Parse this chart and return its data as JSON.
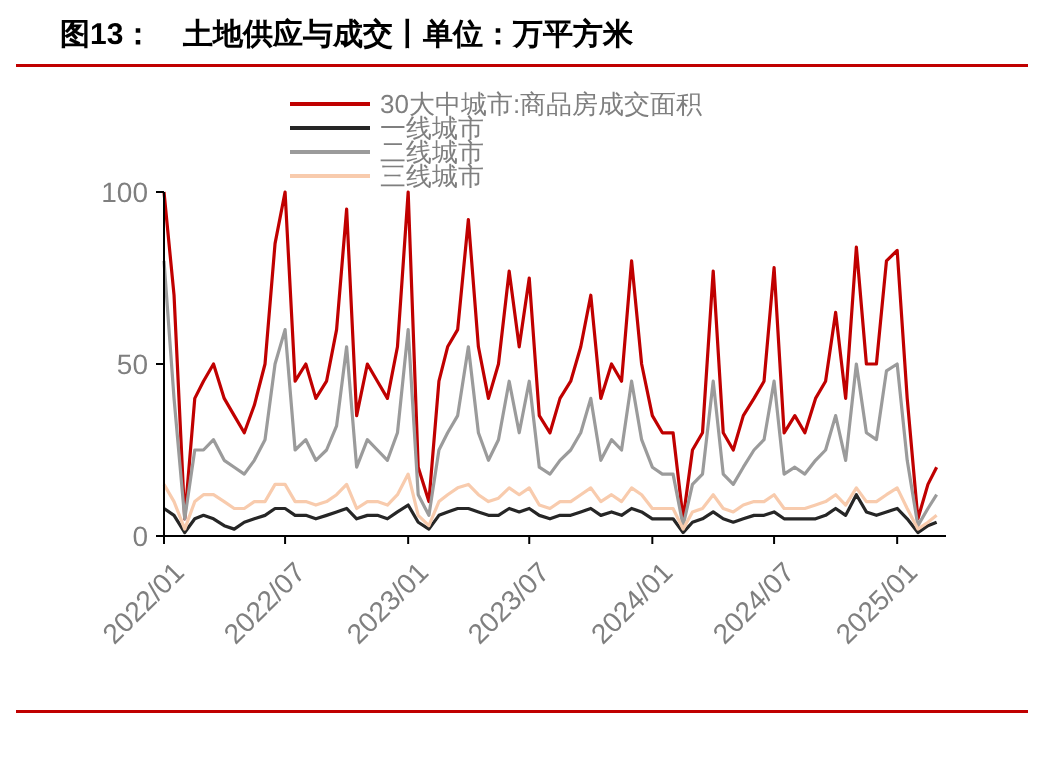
{
  "chart_data": {
    "type": "line",
    "title": "图13：　土地供应与成交丨单位：万平方米",
    "x": [
      "2022-01-01",
      "2022-01-16",
      "2022-02-01",
      "2022-02-16",
      "2022-03-01",
      "2022-03-16",
      "2022-04-01",
      "2022-04-16",
      "2022-05-01",
      "2022-05-16",
      "2022-06-01",
      "2022-06-16",
      "2022-07-01",
      "2022-07-16",
      "2022-08-01",
      "2022-08-16",
      "2022-09-01",
      "2022-09-16",
      "2022-10-01",
      "2022-10-16",
      "2022-11-01",
      "2022-11-16",
      "2022-12-01",
      "2022-12-16",
      "2023-01-01",
      "2023-01-16",
      "2023-02-01",
      "2023-02-16",
      "2023-03-01",
      "2023-03-16",
      "2023-04-01",
      "2023-04-16",
      "2023-05-01",
      "2023-05-16",
      "2023-06-01",
      "2023-06-16",
      "2023-07-01",
      "2023-07-16",
      "2023-08-01",
      "2023-08-16",
      "2023-09-01",
      "2023-09-16",
      "2023-10-01",
      "2023-10-16",
      "2023-11-01",
      "2023-11-16",
      "2023-12-01",
      "2023-12-16",
      "2024-01-01",
      "2024-01-16",
      "2024-02-01",
      "2024-02-16",
      "2024-03-01",
      "2024-03-16",
      "2024-04-01",
      "2024-04-16",
      "2024-05-01",
      "2024-05-16",
      "2024-06-01",
      "2024-06-16",
      "2024-07-01",
      "2024-07-16",
      "2024-08-01",
      "2024-08-16",
      "2024-09-01",
      "2024-09-16",
      "2024-10-01",
      "2024-10-16",
      "2024-11-01",
      "2024-11-16",
      "2024-12-01",
      "2024-12-16",
      "2025-01-01",
      "2025-01-16",
      "2025-02-01",
      "2025-02-16",
      "2025-03-01"
    ],
    "series": [
      {
        "name": "30大中城市:商品房成交面积",
        "color": "#c00000",
        "values": [
          100,
          70,
          5,
          40,
          45,
          50,
          40,
          35,
          30,
          38,
          50,
          85,
          100,
          45,
          50,
          40,
          45,
          60,
          95,
          35,
          50,
          45,
          40,
          55,
          100,
          20,
          10,
          45,
          55,
          60,
          92,
          55,
          40,
          50,
          77,
          55,
          75,
          35,
          30,
          40,
          45,
          55,
          70,
          40,
          50,
          45,
          80,
          50,
          35,
          30,
          30,
          5,
          25,
          30,
          77,
          30,
          25,
          35,
          40,
          45,
          78,
          30,
          35,
          30,
          40,
          45,
          65,
          40,
          84,
          50,
          50,
          80,
          83,
          40,
          5,
          15,
          20
        ]
      },
      {
        "name": "一线城市",
        "color": "#262626",
        "values": [
          8,
          6,
          1,
          5,
          6,
          5,
          3,
          2,
          4,
          5,
          6,
          8,
          8,
          6,
          6,
          5,
          6,
          7,
          8,
          5,
          6,
          6,
          5,
          7,
          9,
          4,
          2,
          6,
          7,
          8,
          8,
          7,
          6,
          6,
          8,
          7,
          8,
          6,
          5,
          6,
          6,
          7,
          8,
          6,
          7,
          6,
          8,
          7,
          5,
          5,
          5,
          1,
          4,
          5,
          7,
          5,
          4,
          5,
          6,
          6,
          7,
          5,
          5,
          5,
          5,
          6,
          8,
          6,
          12,
          7,
          6,
          7,
          8,
          5,
          1,
          3,
          4
        ]
      },
      {
        "name": "二线城市",
        "color": "#9b9b9b",
        "values": [
          80,
          40,
          5,
          25,
          25,
          28,
          22,
          20,
          18,
          22,
          28,
          50,
          60,
          25,
          28,
          22,
          25,
          32,
          55,
          20,
          28,
          25,
          22,
          30,
          60,
          12,
          6,
          25,
          30,
          35,
          55,
          30,
          22,
          28,
          45,
          30,
          45,
          20,
          18,
          22,
          25,
          30,
          40,
          22,
          28,
          25,
          45,
          28,
          20,
          18,
          18,
          3,
          15,
          18,
          45,
          18,
          15,
          20,
          25,
          28,
          45,
          18,
          20,
          18,
          22,
          25,
          35,
          22,
          50,
          30,
          28,
          48,
          50,
          22,
          3,
          8,
          12
        ]
      },
      {
        "name": "三线城市",
        "color": "#f8cbad",
        "values": [
          15,
          10,
          2,
          10,
          12,
          12,
          10,
          8,
          8,
          10,
          10,
          15,
          15,
          10,
          10,
          9,
          10,
          12,
          15,
          8,
          10,
          10,
          9,
          12,
          18,
          6,
          3,
          10,
          12,
          14,
          15,
          12,
          10,
          11,
          14,
          12,
          14,
          9,
          8,
          10,
          10,
          12,
          14,
          10,
          12,
          10,
          14,
          12,
          8,
          8,
          8,
          2,
          7,
          8,
          12,
          8,
          7,
          9,
          10,
          10,
          12,
          8,
          8,
          8,
          9,
          10,
          12,
          9,
          14,
          10,
          10,
          12,
          14,
          8,
          2,
          4,
          6
        ]
      }
    ],
    "xlim": [
      "2022-01-01",
      "2025-03-15"
    ],
    "xticks": [
      {
        "value": "2022-01-01",
        "label": "2022/01"
      },
      {
        "value": "2022-07-01",
        "label": "2022/07"
      },
      {
        "value": "2023-01-01",
        "label": "2023/01"
      },
      {
        "value": "2023-07-01",
        "label": "2023/07"
      },
      {
        "value": "2024-01-01",
        "label": "2024/01"
      },
      {
        "value": "2024-07-01",
        "label": "2024/07"
      },
      {
        "value": "2025-01-01",
        "label": "2025/01"
      }
    ],
    "ylim": [
      0,
      100
    ],
    "yticks": [
      0,
      50,
      100
    ],
    "grid": false,
    "legend": "top",
    "line_style": "solid",
    "marker": "none"
  }
}
